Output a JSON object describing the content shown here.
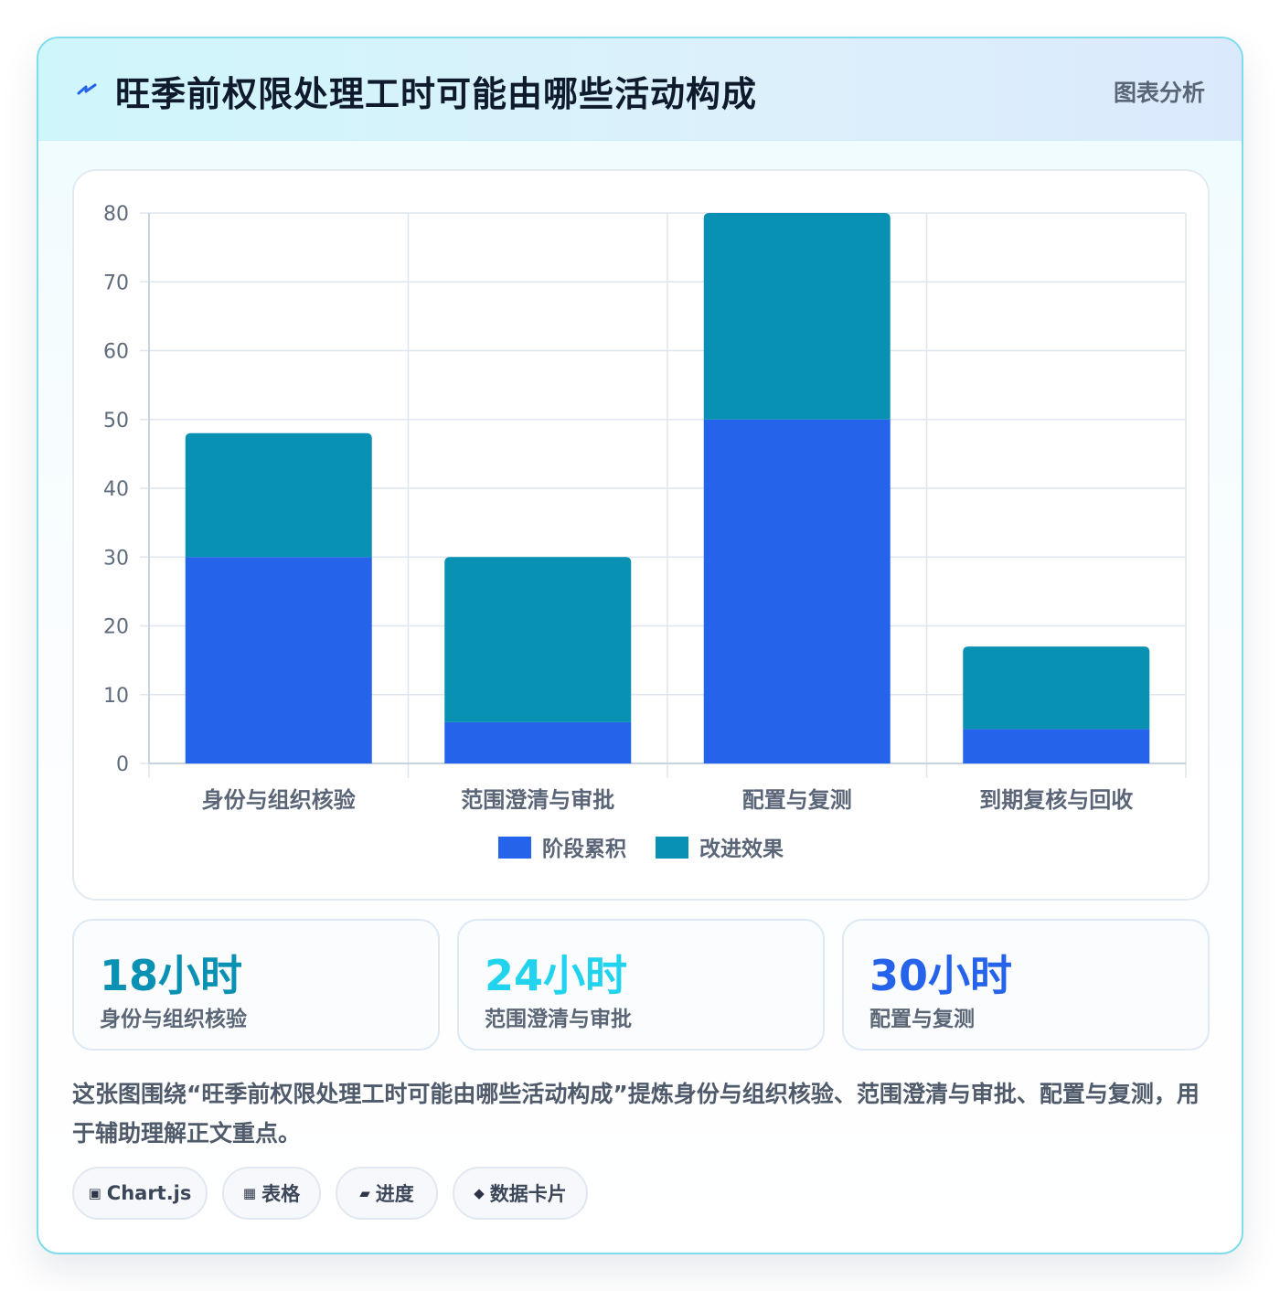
{
  "header": {
    "title": "旺季前权限处理工时可能由哪些活动构成",
    "tag": "图表分析"
  },
  "chart_data": {
    "type": "bar",
    "stacked": true,
    "categories": [
      "身份与组织核验",
      "范围澄清与审批",
      "配置与复测",
      "到期复核与回收"
    ],
    "series": [
      {
        "name": "阶段累积",
        "values": [
          30,
          6,
          50,
          5
        ],
        "color": "#2563eb"
      },
      {
        "name": "改进效果",
        "values": [
          18,
          24,
          30,
          12
        ],
        "color": "#0891b2"
      }
    ],
    "ylim": [
      0,
      80
    ],
    "yticks": [
      0,
      10,
      20,
      30,
      40,
      50,
      60,
      70,
      80
    ],
    "grid": true,
    "legend_position": "bottom"
  },
  "stats": [
    {
      "value": "18小时",
      "label": "身份与组织核验",
      "color": "#0891b2"
    },
    {
      "value": "24小时",
      "label": "范围澄清与审批",
      "color": "#22d3ee"
    },
    {
      "value": "30小时",
      "label": "配置与复测",
      "color": "#2563eb"
    }
  ],
  "description": "这张图围绕“旺季前权限处理工时可能由哪些活动构成”提炼身份与组织核验、范围澄清与审批、配置与复测，用于辅助理解正文重点。",
  "chips": [
    {
      "icon": "▣",
      "label": "Chart.js"
    },
    {
      "icon": "▦",
      "label": "表格"
    },
    {
      "icon": "▰",
      "label": "进度"
    },
    {
      "icon": "◆",
      "label": "数据卡片"
    }
  ]
}
